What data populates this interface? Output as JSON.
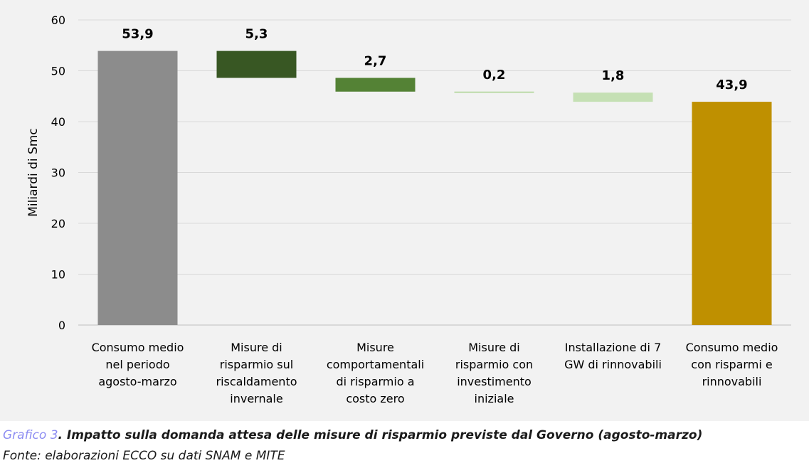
{
  "chart_data": {
    "type": "bar",
    "subtype": "waterfall",
    "ylabel": "Miliardi di Smc",
    "ylim": [
      0,
      60
    ],
    "yticks": [
      0,
      10,
      20,
      30,
      40,
      50,
      60
    ],
    "grid": true,
    "categories": [
      [
        "Consumo medio",
        "nel periodo",
        "agosto-marzo"
      ],
      [
        "Misure di",
        "risparmio sul",
        "riscaldamento",
        "invernale"
      ],
      [
        "Misure",
        "comportamentali",
        "di risparmio a",
        "costo zero"
      ],
      [
        "Misure di",
        "risparmio con",
        "investimento",
        "iniziale"
      ],
      [
        "Installazione di 7",
        "GW di rinnovabili"
      ],
      [
        "Consumo medio",
        "con risparmi e",
        "rinnovabili"
      ]
    ],
    "bars": [
      {
        "kind": "total",
        "base": 0,
        "top": 53.9,
        "value": 53.9,
        "label": "53,9",
        "color": "#8c8c8c"
      },
      {
        "kind": "decrease",
        "base": 48.6,
        "top": 53.9,
        "value": 5.3,
        "label": "5,3",
        "color": "#385723"
      },
      {
        "kind": "decrease",
        "base": 45.9,
        "top": 48.6,
        "value": 2.7,
        "label": "2,7",
        "color": "#548235"
      },
      {
        "kind": "decrease",
        "base": 45.7,
        "top": 45.9,
        "value": 0.2,
        "label": "0,2",
        "color": "#a9d18e"
      },
      {
        "kind": "decrease",
        "base": 43.9,
        "top": 45.7,
        "value": 1.8,
        "label": "1,8",
        "color": "#c5e0b4"
      },
      {
        "kind": "total",
        "base": 0,
        "top": 43.9,
        "value": 43.9,
        "label": "43,9",
        "color": "#bf9000"
      }
    ]
  },
  "caption": {
    "lead": "Grafico 3",
    "title": ". Impatto sulla domanda attesa delle misure di risparmio previste dal Governo (agosto-marzo)",
    "source": "Fonte: elaborazioni ECCO su dati SNAM e MITE"
  }
}
